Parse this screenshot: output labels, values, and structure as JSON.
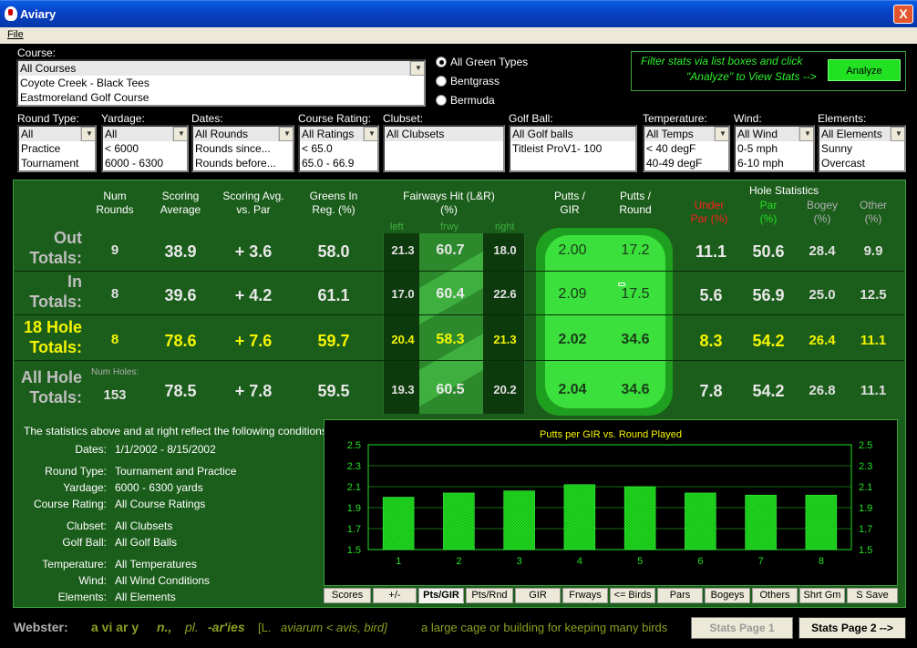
{
  "window": {
    "title": "Aviary",
    "close": "X"
  },
  "menu": {
    "file": "File"
  },
  "course": {
    "label": "Course:",
    "items": [
      "All Courses",
      "Coyote Creek - Black Tees",
      "Eastmoreland Golf Course"
    ]
  },
  "green_types": [
    "All Green Types",
    "Bentgrass",
    "Bermuda"
  ],
  "filter_note": {
    "line1": "Filter stats via list boxes and click",
    "line2": "\"Analyze\" to View Stats -->",
    "button": "Analyze"
  },
  "filters": {
    "round_type": {
      "label": "Round Type:",
      "items": [
        "All",
        "Practice",
        "Tournament"
      ]
    },
    "yardage": {
      "label": "Yardage:",
      "items": [
        "All",
        "< 6000",
        "6000 - 6300"
      ]
    },
    "dates": {
      "label": "Dates:",
      "items": [
        "All Rounds",
        "Rounds since...",
        "Rounds before..."
      ]
    },
    "course_rating": {
      "label": "Course Rating:",
      "items": [
        "All Ratings",
        "< 65.0",
        "65.0 - 66.9"
      ]
    },
    "clubset": {
      "label": "Clubset:",
      "items": [
        "All Clubsets"
      ]
    },
    "golf_ball": {
      "label": "Golf Ball:",
      "items": [
        "All Golf balls",
        "Titleist ProV1- 100"
      ]
    },
    "temperature": {
      "label": "Temperature:",
      "items": [
        "All Temps",
        "< 40 degF",
        "40-49 degF"
      ]
    },
    "wind": {
      "label": "Wind:",
      "items": [
        "All Wind",
        "0-5 mph",
        "6-10 mph"
      ]
    },
    "elements": {
      "label": "Elements:",
      "items": [
        "All Elements",
        "Sunny",
        "Overcast"
      ]
    }
  },
  "headers": {
    "num_rounds": "Num\nRounds",
    "scoring_avg": "Scoring\nAverage",
    "scoring_vs_par": "Scoring Avg.\nvs. Par",
    "gir": "Greens In\nReg. (%)",
    "fairways": "Fairways Hit (L&R)\n(%)",
    "left": "left",
    "frwy": "frwy",
    "right": "right",
    "putts_gir": "Putts /\nGIR",
    "putts_round": "Putts /\nRound",
    "hole_stats": "Hole Statistics",
    "under_par": "Under\nPar (%)",
    "par": "Par\n(%)",
    "bogey": "Bogey\n(%)",
    "other": "Other\n(%)",
    "num_holes": "Num Holes:"
  },
  "rows": [
    {
      "label1": "Out",
      "label2": "Totals:",
      "num": "9",
      "avg": "38.9",
      "vp": "+ 3.6",
      "gir": "58.0",
      "left": "21.3",
      "frwy": "60.7",
      "right": "18.0",
      "pgir": "2.00",
      "pround": "17.2",
      "under": "11.1",
      "par": "50.6",
      "bogey": "28.4",
      "other": "9.9"
    },
    {
      "label1": "In",
      "label2": "Totals:",
      "num": "8",
      "avg": "39.6",
      "vp": "+ 4.2",
      "gir": "61.1",
      "left": "17.0",
      "frwy": "60.4",
      "right": "22.6",
      "pgir": "2.09",
      "pround": "17.5",
      "under": "5.6",
      "par": "56.9",
      "bogey": "25.0",
      "other": "12.5"
    },
    {
      "label1": "18 Hole",
      "label2": "Totals:",
      "num": "8",
      "avg": "78.6",
      "vp": "+ 7.6",
      "gir": "59.7",
      "left": "20.4",
      "frwy": "58.3",
      "right": "21.3",
      "pgir": "2.02",
      "pround": "34.6",
      "under": "8.3",
      "par": "54.2",
      "bogey": "26.4",
      "other": "11.1"
    },
    {
      "label1": "All Hole",
      "label2": "Totals:",
      "num": "153",
      "avg": "78.5",
      "vp": "+ 7.8",
      "gir": "59.5",
      "left": "19.3",
      "frwy": "60.5",
      "right": "20.2",
      "pgir": "2.04",
      "pround": "34.6",
      "under": "7.8",
      "par": "54.2",
      "bogey": "26.8",
      "other": "11.1"
    }
  ],
  "conditions": {
    "intro": "The statistics above and at right reflect the following conditions:",
    "items": [
      {
        "k": "Dates:",
        "v": "1/1/2002 - 8/15/2002"
      },
      {
        "k": "Round Type:",
        "v": "Tournament and Practice"
      },
      {
        "k": "Yardage:",
        "v": "6000 - 6300 yards"
      },
      {
        "k": "Course Rating:",
        "v": "All Course Ratings"
      },
      {
        "k": "Clubset:",
        "v": "All Clubsets"
      },
      {
        "k": "Golf Ball:",
        "v": "All Golf Balls"
      },
      {
        "k": "Temperature:",
        "v": "All Temperatures"
      },
      {
        "k": "Wind:",
        "v": "All Wind Conditions"
      },
      {
        "k": "Elements:",
        "v": "All Elements"
      }
    ]
  },
  "chart_data": {
    "type": "bar",
    "title": "Putts per GIR vs. Round Played",
    "categories": [
      "1",
      "2",
      "3",
      "4",
      "5",
      "6",
      "7",
      "8"
    ],
    "values": [
      2.0,
      2.04,
      2.06,
      2.12,
      2.1,
      2.04,
      2.02,
      2.02
    ],
    "ylim": [
      1.5,
      2.5
    ],
    "yticks": [
      "2.5",
      "2.3",
      "2.1",
      "1.9",
      "1.7",
      "1.5"
    ],
    "grid": true,
    "bar_color": "#22e022"
  },
  "tabs": [
    "Scores",
    "+/-",
    "Pts/GIR",
    "Pts/Rnd",
    "GIR",
    "Frways",
    "<= Birds",
    "Pars",
    "Bogeys",
    "Others",
    "Shrt Gm",
    "S Save"
  ],
  "footer": {
    "webster": "Webster:",
    "word": "a vi ar y",
    "pos": "n.,",
    "pl": "pl.",
    "plural": "-ar'ies",
    "etym1": "[L.",
    "etym2": "aviarum < avis, bird]",
    "definition": "a large cage or building for keeping many birds",
    "page1": "Stats Page 1",
    "page2": "Stats Page 2 -->"
  },
  "colors": {
    "panel": "#1b5d1b",
    "highlight": "#f5f500",
    "under_par": "#ff2020",
    "par": "#22e022"
  }
}
